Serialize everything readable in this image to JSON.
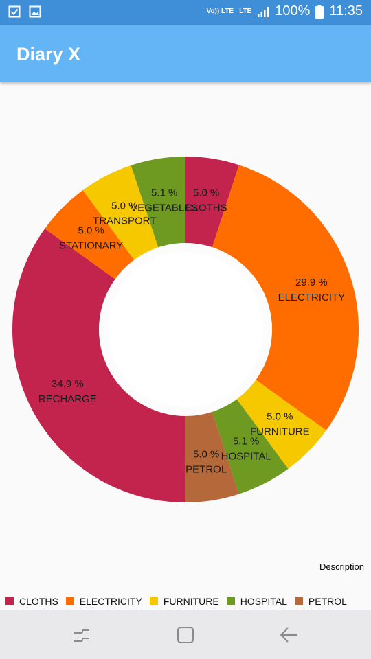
{
  "status_bar": {
    "volte_label": "Vo)) LTE",
    "network_label": "LTE",
    "battery": "100%",
    "time": "11:35"
  },
  "app_bar": {
    "title": "Diary X"
  },
  "chart_data": {
    "type": "pie",
    "style": "donut",
    "categories": [
      "CLOTHS",
      "ELECTRICITY",
      "FURNITURE",
      "HOSPITAL",
      "PETROL",
      "RECHARGE",
      "STATIONARY",
      "TRANSPORT",
      "VEGETABLES"
    ],
    "values": [
      5.0,
      29.9,
      5.0,
      5.1,
      5.0,
      34.9,
      5.0,
      5.0,
      5.1
    ],
    "value_labels": [
      "5.0 %",
      "29.9 %",
      "5.0 %",
      "5.1 %",
      "5.0 %",
      "34.9 %",
      "5.0 %",
      "5.0 %",
      "5.1 %"
    ],
    "colors": [
      "#c2244e",
      "#ff6d00",
      "#f5c800",
      "#6e9a22",
      "#b5693a",
      "#c2244e",
      "#ff6d00",
      "#f5c800",
      "#6e9a22"
    ],
    "description": "Description",
    "legend_position": "bottom-left"
  },
  "legend": {
    "items": [
      {
        "label": "CLOTHS",
        "color": "#c2244e"
      },
      {
        "label": "ELECTRICITY",
        "color": "#ff6d00"
      },
      {
        "label": "FURNITURE",
        "color": "#f5c800"
      },
      {
        "label": "HOSPITAL",
        "color": "#6e9a22"
      },
      {
        "label": "PETROL",
        "color": "#b5693a"
      }
    ]
  },
  "nav": {
    "icons": [
      "recent-apps-icon",
      "home-icon",
      "back-icon"
    ]
  }
}
